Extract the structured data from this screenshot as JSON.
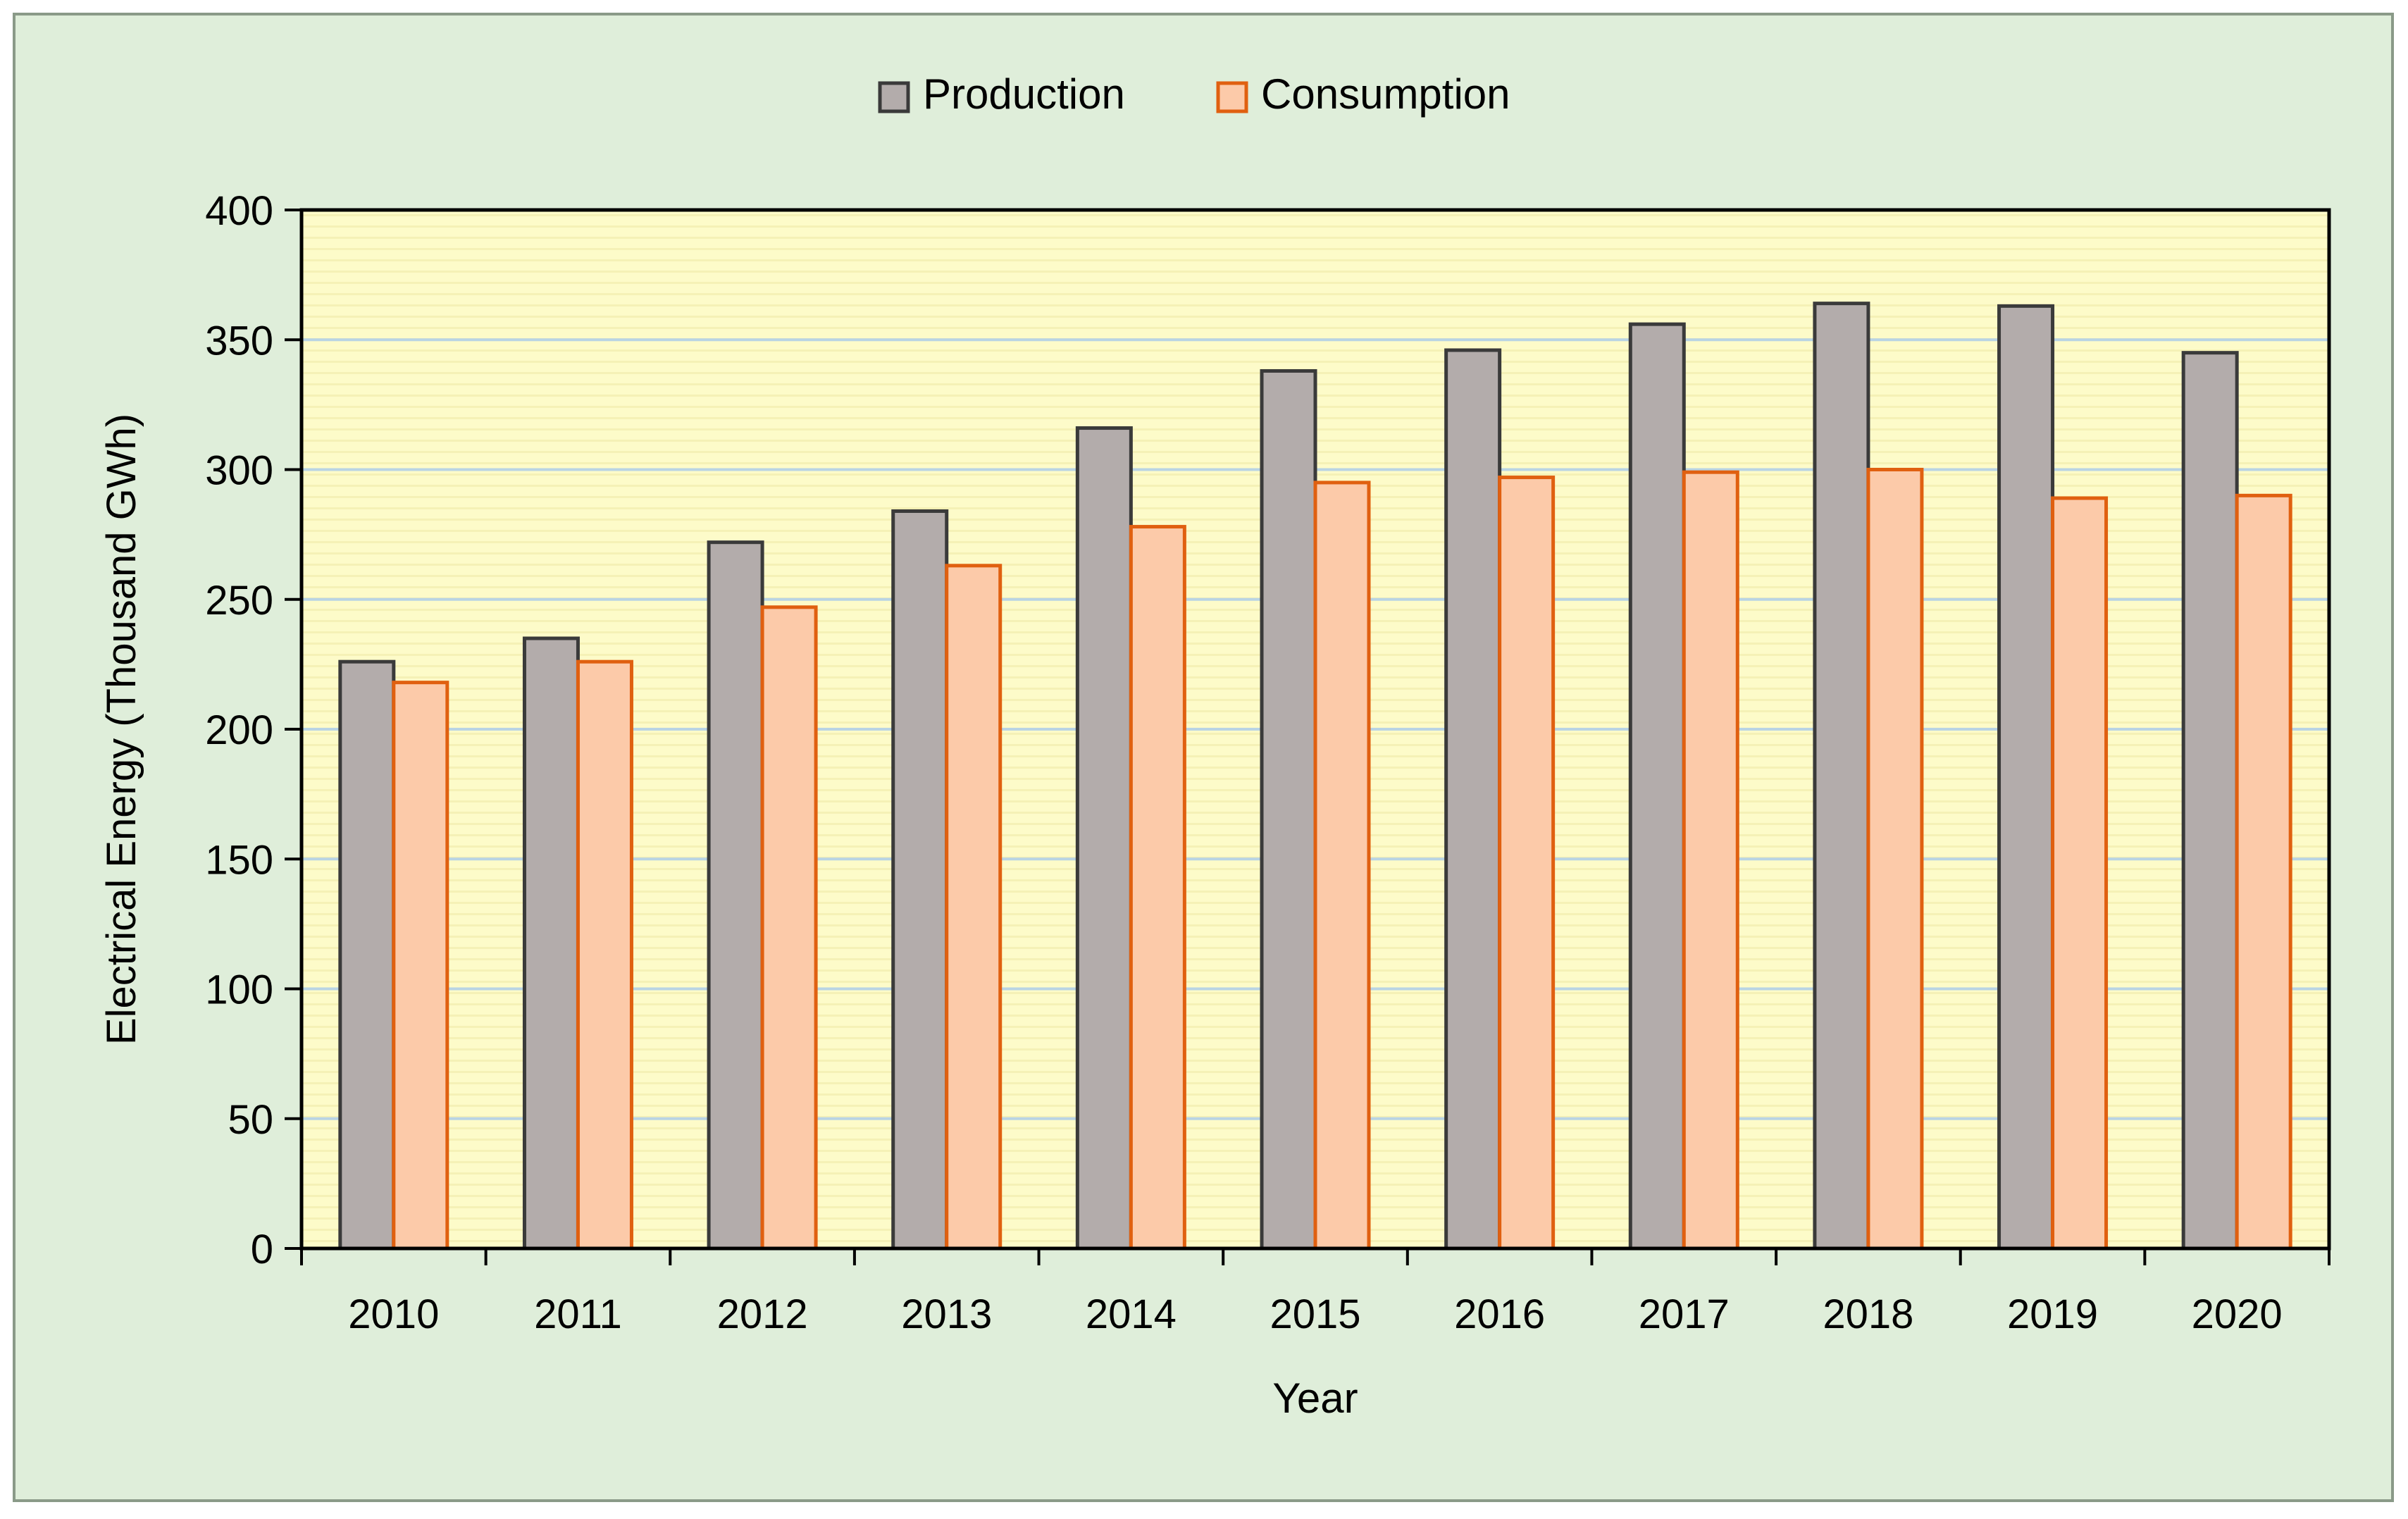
{
  "chart_data": {
    "type": "bar",
    "title": "",
    "xlabel": "Year",
    "ylabel": "Electrical Energy (Thousand GWh)",
    "categories": [
      "2010",
      "2011",
      "2012",
      "2013",
      "2014",
      "2015",
      "2016",
      "2017",
      "2018",
      "2019",
      "2020"
    ],
    "series": [
      {
        "name": "Production",
        "values": [
          226,
          235,
          272,
          284,
          316,
          338,
          346,
          356,
          364,
          363,
          345
        ],
        "fill": "#b3acab",
        "stroke": "#3a3a3a"
      },
      {
        "name": "Consumption",
        "values": [
          218,
          226,
          247,
          263,
          278,
          295,
          297,
          299,
          300,
          289,
          290
        ],
        "fill": "#fccaa9",
        "stroke": "#e06010"
      }
    ],
    "ylim": [
      0,
      400
    ],
    "yticks": [
      "0",
      "50",
      "100",
      "150",
      "200",
      "250",
      "300",
      "350",
      "400"
    ],
    "grid": true,
    "legend_position": "top-center"
  },
  "colors": {
    "outer_background": "#dfeeda",
    "outer_border": "#8a9a88",
    "plot_background": "#fdfbc9",
    "plot_stripe": "#f5f1b6",
    "gridline": "#b9d4e4",
    "axis": "#000000"
  }
}
